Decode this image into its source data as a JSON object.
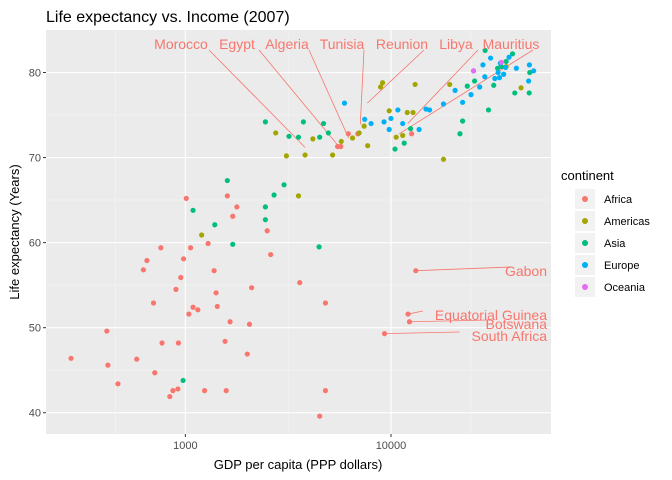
{
  "chart_data": {
    "type": "scatter",
    "title": "Life expectancy vs. Income (2007)",
    "xlabel": "GDP per capita (PPP dollars)",
    "ylabel": "Life expectancy (Years)",
    "x_scale": "log10",
    "xlim": [
      210,
      60000
    ],
    "ylim": [
      37.5,
      85
    ],
    "x_ticks": [
      1000,
      10000
    ],
    "x_tick_labels": [
      "1000",
      "10000"
    ],
    "y_ticks": [
      40,
      50,
      60,
      70,
      80
    ],
    "y_tick_labels": [
      "40",
      "50",
      "60",
      "70",
      "80"
    ],
    "grid": true,
    "legend": {
      "title": "continent",
      "placement": "right",
      "items": [
        {
          "name": "Africa",
          "color": "#F8766D"
        },
        {
          "name": "Americas",
          "color": "#A3A500"
        },
        {
          "name": "Asia",
          "color": "#00BF7D"
        },
        {
          "name": "Europe",
          "color": "#00B0F6"
        },
        {
          "name": "Oceania",
          "color": "#E76BF3"
        }
      ]
    },
    "series": [
      {
        "name": "Africa",
        "color": "#F8766D",
        "points": [
          [
            278,
            46.4
          ],
          [
            415,
            49.6
          ],
          [
            420,
            45.6
          ],
          [
            470,
            43.4
          ],
          [
            580,
            46.3
          ],
          [
            625,
            56.8
          ],
          [
            650,
            57.9
          ],
          [
            700,
            52.9
          ],
          [
            710,
            44.7
          ],
          [
            760,
            59.4
          ],
          [
            770,
            48.2
          ],
          [
            840,
            41.9
          ],
          [
            870,
            42.6
          ],
          [
            900,
            54.5
          ],
          [
            920,
            42.8
          ],
          [
            925,
            48.2
          ],
          [
            950,
            55.9
          ],
          [
            980,
            58.1
          ],
          [
            1010,
            65.2
          ],
          [
            1040,
            51.6
          ],
          [
            1060,
            59.4
          ],
          [
            1090,
            52.4
          ],
          [
            1150,
            52.1
          ],
          [
            1240,
            42.6
          ],
          [
            1290,
            59.9
          ],
          [
            1380,
            56.7
          ],
          [
            1410,
            54.1
          ],
          [
            1430,
            52.5
          ],
          [
            1560,
            48.4
          ],
          [
            1580,
            42.6
          ],
          [
            1600,
            65.5
          ],
          [
            1650,
            50.7
          ],
          [
            1700,
            63.1
          ],
          [
            1780,
            64.2
          ],
          [
            2000,
            46.9
          ],
          [
            2050,
            50.4
          ],
          [
            2100,
            54.7
          ],
          [
            2500,
            61.4
          ],
          [
            2600,
            58.6
          ],
          [
            3600,
            55.3
          ],
          [
            4500,
            39.6
          ],
          [
            4800,
            42.6
          ],
          [
            4800,
            52.9
          ],
          [
            5500,
            71.3
          ],
          [
            5700,
            71.3
          ],
          [
            6200,
            72.8
          ],
          [
            6900,
            72.8
          ],
          [
            9300,
            49.3
          ],
          [
            12100,
            51.6
          ],
          [
            12300,
            50.7
          ],
          [
            12600,
            72.8
          ],
          [
            13200,
            56.7
          ]
        ]
      },
      {
        "name": "Americas",
        "color": "#A3A500",
        "points": [
          [
            1200,
            60.9
          ],
          [
            2750,
            72.9
          ],
          [
            3100,
            70.2
          ],
          [
            3550,
            65.5
          ],
          [
            3820,
            70.3
          ],
          [
            4170,
            72.2
          ],
          [
            5200,
            70.3
          ],
          [
            5730,
            71.9
          ],
          [
            6500,
            72.3
          ],
          [
            7000,
            72.9
          ],
          [
            7400,
            73.7
          ],
          [
            7700,
            71.4
          ],
          [
            8900,
            78.3
          ],
          [
            9100,
            78.8
          ],
          [
            9800,
            75.5
          ],
          [
            10600,
            72.4
          ],
          [
            11400,
            72.6
          ],
          [
            12000,
            75.3
          ],
          [
            12800,
            75.3
          ],
          [
            13100,
            78.6
          ],
          [
            18000,
            69.8
          ],
          [
            19300,
            78.6
          ],
          [
            36300,
            80.7
          ],
          [
            42900,
            78.2
          ]
        ]
      },
      {
        "name": "Asia",
        "color": "#00BF7D",
        "points": [
          [
            975,
            43.8
          ],
          [
            1090,
            63.8
          ],
          [
            1390,
            62.1
          ],
          [
            1600,
            67.3
          ],
          [
            1700,
            59.8
          ],
          [
            2450,
            62.7
          ],
          [
            2450,
            74.2
          ],
          [
            2450,
            64.2
          ],
          [
            2700,
            65.6
          ],
          [
            3020,
            66.8
          ],
          [
            3190,
            72.5
          ],
          [
            3550,
            72.4
          ],
          [
            3750,
            74.2
          ],
          [
            4470,
            59.5
          ],
          [
            4500,
            72.4
          ],
          [
            4700,
            74.0
          ],
          [
            4960,
            72.9
          ],
          [
            10460,
            71.0
          ],
          [
            11600,
            71.7
          ],
          [
            12450,
            73.4
          ],
          [
            21650,
            72.8
          ],
          [
            25500,
            79.0
          ],
          [
            28700,
            82.6
          ],
          [
            39000,
            82.2
          ],
          [
            40000,
            77.6
          ],
          [
            47300,
            80.0
          ],
          [
            47000,
            77.6
          ],
          [
            29800,
            75.6
          ],
          [
            22300,
            74.3
          ],
          [
            23500,
            78.4
          ],
          [
            31600,
            78.5
          ],
          [
            34400,
            80.7
          ],
          [
            36300,
            81.3
          ],
          [
            33000,
            80.5
          ]
        ]
      },
      {
        "name": "Europe",
        "color": "#00B0F6",
        "points": [
          [
            5940,
            76.4
          ],
          [
            7450,
            74.5
          ],
          [
            8000,
            74.0
          ],
          [
            9250,
            74.2
          ],
          [
            9800,
            73.3
          ],
          [
            10000,
            74.6
          ],
          [
            10800,
            75.6
          ],
          [
            11400,
            74.0
          ],
          [
            13700,
            73.3
          ],
          [
            14800,
            75.7
          ],
          [
            15400,
            75.6
          ],
          [
            18000,
            76.3
          ],
          [
            20500,
            77.9
          ],
          [
            22300,
            76.5
          ],
          [
            24500,
            77.4
          ],
          [
            25200,
            80.2
          ],
          [
            27000,
            78.3
          ],
          [
            28000,
            80.9
          ],
          [
            28600,
            79.5
          ],
          [
            30500,
            81.7
          ],
          [
            32000,
            79.3
          ],
          [
            33200,
            80.0
          ],
          [
            33700,
            79.4
          ],
          [
            34000,
            81.1
          ],
          [
            35300,
            79.8
          ],
          [
            36100,
            80.6
          ],
          [
            37500,
            81.8
          ],
          [
            40700,
            80.5
          ],
          [
            46700,
            79.0
          ],
          [
            47100,
            80.9
          ],
          [
            49400,
            80.2
          ]
        ]
      },
      {
        "name": "Oceania",
        "color": "#E76BF3",
        "points": [
          [
            25200,
            80.2
          ],
          [
            34400,
            81.2
          ]
        ]
      }
    ],
    "annotations": [
      {
        "label": "Morocco",
        "x": 3820,
        "y": 71.2
      },
      {
        "label": "Egypt",
        "x": 5580,
        "y": 71.3
      },
      {
        "label": "Algeria",
        "x": 6220,
        "y": 72.3
      },
      {
        "label": "Tunisia",
        "x": 7090,
        "y": 73.9
      },
      {
        "label": "Reunion",
        "x": 7670,
        "y": 76.4
      },
      {
        "label": "Libya",
        "x": 12060,
        "y": 74.0
      },
      {
        "label": "Mauritius",
        "x": 10960,
        "y": 72.8
      },
      {
        "label": "Gabon",
        "x": 13210,
        "y": 56.7
      },
      {
        "label": "Equatorial Guinea",
        "x": 12150,
        "y": 51.6
      },
      {
        "label": "Botswana",
        "x": 12570,
        "y": 50.7
      },
      {
        "label": "South Africa",
        "x": 9270,
        "y": 49.3
      }
    ]
  }
}
